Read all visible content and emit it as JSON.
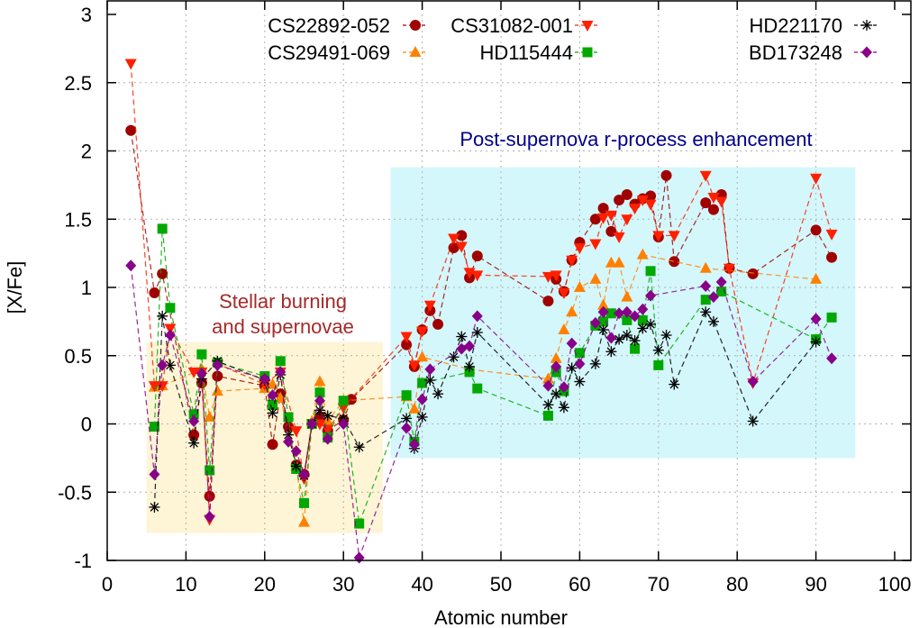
{
  "chart_data": {
    "type": "line",
    "title": "",
    "xlabel": "Atomic number",
    "ylabel": "[X/Fe]",
    "xlim": [
      0,
      100
    ],
    "ylim": [
      -1,
      3
    ],
    "xticks": [
      0,
      10,
      20,
      30,
      40,
      50,
      60,
      70,
      80,
      90,
      100
    ],
    "xtick_labels": [
      "0",
      "10",
      "20",
      "30",
      "40",
      "50",
      "60",
      "70",
      "80",
      "90",
      "100"
    ],
    "yticks": [
      -1,
      -0.5,
      0,
      0.5,
      1,
      1.5,
      2,
      2.5,
      3
    ],
    "ytick_labels": [
      "-1",
      "-0.5",
      "0",
      "0.5",
      "1",
      "1.5",
      "2",
      "2.5",
      "3"
    ],
    "grid": true,
    "legend_position": "top-right",
    "regions": [
      {
        "name": "stellar-burning",
        "x": [
          5,
          35
        ],
        "y": [
          -0.8,
          0.6
        ],
        "color": "#fdf5d6",
        "label_lines": [
          "Stellar burning",
          "and supernovae"
        ],
        "label_color": "#a52a2a"
      },
      {
        "name": "r-process",
        "x": [
          36,
          95
        ],
        "y": [
          -0.25,
          1.88
        ],
        "color": "#d4f7fb",
        "label_lines": [
          "Post-supernova r-process enhancement"
        ],
        "label_color": "#00008b"
      }
    ],
    "series": [
      {
        "name": "CS22892-052",
        "color": "#a00000",
        "marker": "circle",
        "x": [
          3,
          6,
          7,
          11,
          12,
          13,
          14,
          20,
          21,
          22,
          23,
          24,
          25,
          26,
          27,
          28,
          30,
          31,
          38,
          39,
          40,
          41,
          42,
          44,
          45,
          46,
          47,
          56,
          57,
          58,
          59,
          60,
          62,
          63,
          64,
          65,
          66,
          67,
          68,
          69,
          70,
          71,
          72,
          76,
          77,
          78,
          79,
          82,
          90,
          92
        ],
        "y": [
          2.15,
          0.96,
          1.1,
          -0.08,
          0.3,
          -0.53,
          0.35,
          0.28,
          -0.15,
          0.22,
          -0.02,
          -0.3,
          -0.37,
          0.0,
          0.05,
          -0.05,
          0.03,
          0.18,
          0.58,
          0.42,
          0.69,
          0.83,
          0.73,
          1.29,
          1.38,
          1.07,
          1.23,
          0.9,
          1.06,
          0.97,
          1.2,
          1.33,
          1.5,
          1.58,
          1.41,
          1.64,
          1.68,
          1.61,
          1.65,
          1.67,
          1.37,
          1.82,
          1.19,
          1.62,
          1.57,
          1.68,
          1.14,
          1.1,
          1.42,
          1.22
        ]
      },
      {
        "name": "CS29491-069",
        "color": "#ff8000",
        "marker": "triangle-up",
        "x": [
          6,
          7,
          12,
          13,
          14,
          20,
          21,
          22,
          24,
          25,
          26,
          27,
          28,
          30,
          38,
          39,
          40,
          46,
          56,
          57,
          58,
          59,
          60,
          62,
          63,
          64,
          65,
          66,
          68,
          76,
          90
        ],
        "y": [
          0.27,
          0.28,
          0.4,
          0.05,
          0.24,
          0.26,
          0.29,
          0.19,
          -0.31,
          -0.72,
          0.02,
          0.31,
          0.02,
          0.17,
          0.2,
          0.11,
          0.49,
          0.4,
          0.33,
          0.48,
          0.69,
          0.82,
          1.0,
          1.06,
          0.87,
          1.18,
          1.18,
          0.93,
          1.24,
          1.14,
          1.06
        ]
      },
      {
        "name": "CS31082-001",
        "color": "#ff2000",
        "marker": "triangle-down",
        "x": [
          3,
          6,
          7,
          8,
          11,
          12,
          13,
          14,
          20,
          22,
          24,
          25,
          26,
          27,
          28,
          30,
          38,
          39,
          40,
          41,
          44,
          45,
          46,
          47,
          56,
          57,
          58,
          59,
          60,
          62,
          63,
          64,
          65,
          66,
          67,
          68,
          69,
          70,
          72,
          76,
          77,
          78,
          79,
          82,
          90,
          92
        ],
        "y": [
          2.64,
          0.28,
          0.28,
          0.7,
          0.38,
          0.38,
          -0.7,
          0.44,
          0.29,
          0.38,
          -0.05,
          -0.4,
          0.0,
          0.0,
          -0.04,
          0.12,
          0.64,
          0.43,
          0.68,
          0.87,
          1.36,
          1.3,
          1.11,
          1.09,
          1.08,
          1.09,
          0.96,
          1.2,
          1.29,
          1.32,
          1.51,
          1.53,
          1.37,
          1.5,
          1.58,
          1.64,
          1.61,
          1.38,
          1.38,
          1.82,
          1.66,
          1.63,
          1.14,
          0.3,
          1.8,
          1.39
        ]
      },
      {
        "name": "HD115444",
        "color": "#00a800",
        "marker": "square",
        "x": [
          6,
          7,
          8,
          11,
          12,
          13,
          14,
          20,
          21,
          22,
          23,
          24,
          25,
          26,
          27,
          28,
          30,
          32,
          38,
          39,
          40,
          46,
          47,
          56,
          57,
          58,
          60,
          62,
          63,
          64,
          66,
          67,
          68,
          69,
          70,
          76,
          78,
          90,
          92
        ],
        "y": [
          -0.02,
          1.43,
          0.85,
          0.07,
          0.51,
          -0.34,
          0.45,
          0.35,
          0.14,
          0.46,
          0.05,
          -0.33,
          -0.58,
          0.0,
          0.23,
          -0.1,
          0.17,
          -0.73,
          0.21,
          -0.13,
          0.3,
          0.38,
          0.26,
          0.06,
          0.38,
          0.24,
          0.52,
          0.72,
          0.75,
          0.81,
          0.76,
          0.55,
          0.76,
          1.12,
          0.43,
          0.91,
          0.97,
          0.62,
          0.78
        ]
      },
      {
        "name": "HD221170",
        "color": "#000000",
        "marker": "star",
        "x": [
          6,
          7,
          8,
          11,
          12,
          14,
          20,
          21,
          22,
          23,
          24,
          25,
          26,
          27,
          28,
          30,
          32,
          38,
          39,
          40,
          41,
          42,
          44,
          45,
          46,
          47,
          56,
          57,
          58,
          59,
          60,
          62,
          63,
          64,
          65,
          66,
          67,
          68,
          69,
          70,
          71,
          72,
          76,
          77,
          82,
          90
        ],
        "y": [
          -0.61,
          0.79,
          0.43,
          -0.14,
          0.33,
          0.46,
          0.32,
          0.08,
          0.36,
          -0.08,
          -0.31,
          -0.38,
          0.0,
          0.1,
          0.06,
          0.04,
          -0.17,
          0.04,
          -0.18,
          0.05,
          0.32,
          0.22,
          0.49,
          0.64,
          0.42,
          0.67,
          0.14,
          0.22,
          0.12,
          0.41,
          0.31,
          0.44,
          0.69,
          0.53,
          0.62,
          0.65,
          0.61,
          0.7,
          0.73,
          0.54,
          0.65,
          0.29,
          0.82,
          0.75,
          0.02,
          0.6
        ]
      },
      {
        "name": "BD173248",
        "color": "#880088",
        "marker": "diamond",
        "x": [
          3,
          6,
          7,
          8,
          11,
          12,
          13,
          14,
          20,
          21,
          22,
          23,
          24,
          25,
          26,
          27,
          28,
          30,
          32,
          38,
          39,
          40,
          41,
          45,
          46,
          47,
          56,
          57,
          58,
          59,
          60,
          62,
          63,
          64,
          65,
          66,
          67,
          68,
          69,
          76,
          77,
          78,
          82,
          90,
          92
        ],
        "y": [
          1.16,
          -0.37,
          0.43,
          0.65,
          0.02,
          0.37,
          -0.68,
          0.43,
          0.33,
          0.21,
          0.38,
          -0.13,
          -0.2,
          -0.37,
          0.0,
          0.17,
          -0.11,
          0.0,
          -0.98,
          -0.03,
          -0.15,
          0.18,
          0.4,
          0.55,
          0.57,
          0.79,
          0.28,
          0.42,
          0.27,
          0.59,
          0.44,
          0.74,
          0.82,
          0.63,
          0.81,
          0.82,
          0.79,
          0.84,
          0.94,
          1.01,
          0.93,
          1.04,
          0.31,
          0.77,
          0.48
        ]
      }
    ]
  }
}
